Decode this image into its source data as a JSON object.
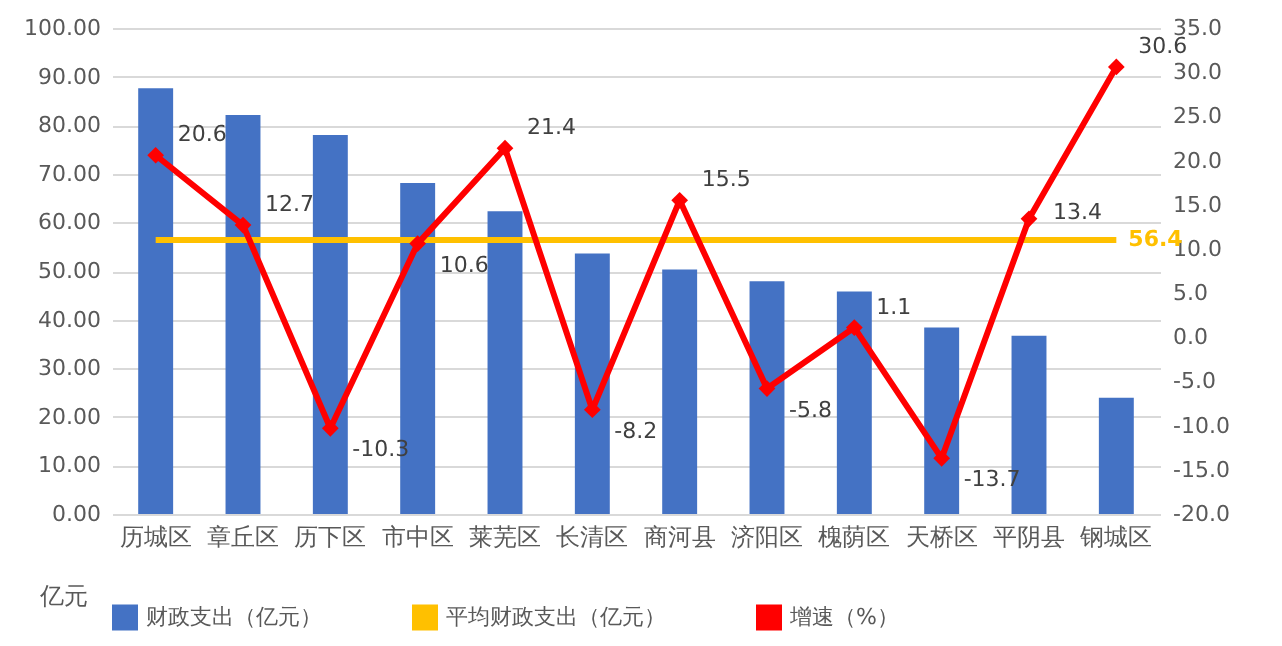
{
  "chart_data": {
    "type": "bar",
    "categories": [
      "历城区",
      "章丘区",
      "历下区",
      "市中区",
      "莱芜区",
      "长清区",
      "商河县",
      "济阳区",
      "槐荫区",
      "天桥区",
      "平阴县",
      "钢城区"
    ],
    "series": [
      {
        "name": "财政支出（亿元）",
        "type": "bar",
        "color": "#4472c4",
        "values": [
          87.6,
          82.1,
          78.0,
          68.1,
          62.3,
          53.6,
          50.3,
          47.9,
          45.8,
          38.4,
          36.7,
          23.9
        ]
      },
      {
        "name": "平均财政支出（亿元）",
        "type": "line",
        "color": "#ffc000",
        "values": [
          56.4,
          56.4,
          56.4,
          56.4,
          56.4,
          56.4,
          56.4,
          56.4,
          56.4,
          56.4,
          56.4,
          56.4
        ],
        "value_labels": [
          null,
          null,
          null,
          null,
          null,
          null,
          null,
          null,
          null,
          null,
          null,
          "56.4"
        ]
      },
      {
        "name": "增速（%）",
        "type": "line",
        "axis": "y2",
        "color": "#ff0000",
        "marker": "diamond",
        "data_labels": true,
        "values": [
          20.6,
          12.7,
          -10.3,
          10.6,
          21.4,
          -8.2,
          15.5,
          -5.8,
          1.1,
          -13.7,
          13.4,
          30.6
        ]
      }
    ],
    "ylim": [
      0,
      100
    ],
    "yticks": [
      {
        "value": 0,
        "label": "0.00"
      },
      {
        "value": 10,
        "label": "10.00"
      },
      {
        "value": 20,
        "label": "20.00"
      },
      {
        "value": 30,
        "label": "30.00"
      },
      {
        "value": 40,
        "label": "40.00"
      },
      {
        "value": 50,
        "label": "50.00"
      },
      {
        "value": 60,
        "label": "60.00"
      },
      {
        "value": 70,
        "label": "70.00"
      },
      {
        "value": 80,
        "label": "80.00"
      },
      {
        "value": 90,
        "label": "90.00"
      },
      {
        "value": 100,
        "label": "100.00"
      }
    ],
    "y2lim": [
      -20,
      35
    ],
    "y2ticks": [
      {
        "value": -20,
        "label": "-20.0"
      },
      {
        "value": -15,
        "label": "-15.0"
      },
      {
        "value": -10,
        "label": "-10.0"
      },
      {
        "value": -5,
        "label": "-5.0"
      },
      {
        "value": 0,
        "label": "0.0"
      },
      {
        "value": 5,
        "label": "5.0"
      },
      {
        "value": 10,
        "label": "10.0"
      },
      {
        "value": 15,
        "label": "15.0"
      },
      {
        "value": 20,
        "label": "20.0"
      },
      {
        "value": 25,
        "label": "25.0"
      },
      {
        "value": 30,
        "label": "30.0"
      },
      {
        "value": 35,
        "label": "35.0"
      }
    ],
    "grid": "y",
    "legend": "bottom",
    "annotations": [
      "亿元"
    ]
  }
}
